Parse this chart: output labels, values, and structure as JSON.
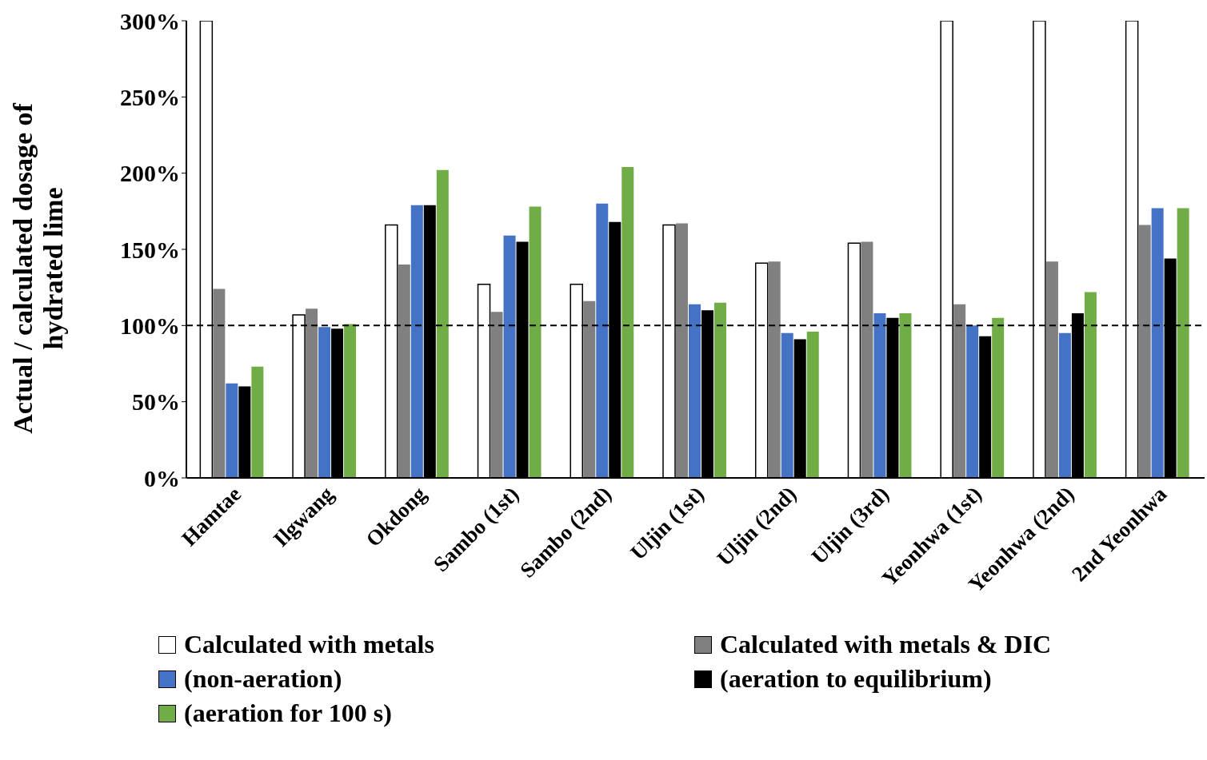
{
  "chart_data": {
    "type": "bar",
    "ylabel": "Actual  / calculated dosage of hydrated lime",
    "categories": [
      "Hamtae",
      "Ilgwang",
      "Okdong",
      "Sambo (1st)",
      "Sambo (2nd)",
      "Uljin (1st)",
      "Uljin (2nd)",
      "Uljin (3rd)",
      "Yeonhwa (1st)",
      "Yeonhwa (2nd)",
      "2nd Yeonhwa"
    ],
    "series": [
      {
        "name": "Calculated with metals",
        "color": "#ffffff",
        "values": [
          300,
          107,
          166,
          127,
          127,
          166,
          141,
          154,
          300,
          300,
          300
        ]
      },
      {
        "name": "Calculated with metals & DIC",
        "color": "#808080",
        "values": [
          124,
          111,
          140,
          109,
          116,
          167,
          142,
          155,
          114,
          142,
          166
        ]
      },
      {
        "name": "(non-aeration)",
        "color": "#4472c4",
        "values": [
          62,
          99,
          179,
          159,
          180,
          114,
          95,
          108,
          100,
          95,
          177
        ]
      },
      {
        "name": "(aeration to equilibrium)",
        "color": "#000000",
        "values": [
          60,
          98,
          179,
          155,
          168,
          110,
          91,
          105,
          93,
          108,
          144
        ]
      },
      {
        "name": "(aeration for 100 s)",
        "color": "#70ad47",
        "values": [
          73,
          101,
          202,
          178,
          204,
          115,
          96,
          108,
          105,
          122,
          177
        ]
      }
    ],
    "ylim": [
      0,
      300
    ],
    "yticks": [
      {
        "value": 0,
        "label": "0%"
      },
      {
        "value": 50,
        "label": "50%"
      },
      {
        "value": 100,
        "label": "100%"
      },
      {
        "value": 150,
        "label": "150%"
      },
      {
        "value": 200,
        "label": "200%"
      },
      {
        "value": 250,
        "label": "250%"
      },
      {
        "value": 300,
        "label": "300%"
      }
    ],
    "ref_lines": [
      {
        "axis": "y",
        "value": 100,
        "line_style": "dashed",
        "color": "#000000"
      }
    ],
    "grid": false,
    "legend": "bottom"
  }
}
